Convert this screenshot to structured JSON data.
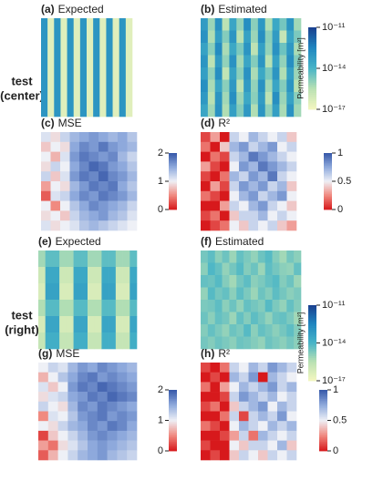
{
  "row_labels": [
    [
      "test",
      "(center)"
    ],
    [
      "test",
      "(right)"
    ]
  ],
  "chart_data": [
    {
      "type": "heatmap",
      "label": "(a)",
      "title": "Expected",
      "cmap": "YlGnBu",
      "zlim": [
        -17,
        -11
      ],
      "z": [
        [
          -13,
          -16.5,
          -13,
          -16.5,
          -13,
          -16.5,
          -13,
          -16.5,
          -13,
          -16.5,
          -13,
          -16.5,
          -13,
          -16.5
        ]
      ]
    },
    {
      "type": "heatmap",
      "label": "(b)",
      "title": "Estimated",
      "cmap": "YlGnBu",
      "zlim": [
        -17,
        -11
      ],
      "colorbar_label": "Permeability [m²]",
      "zticks": [
        {
          "value": -11,
          "label": "10⁻¹¹"
        },
        {
          "value": -14,
          "label": "10⁻¹⁴"
        },
        {
          "value": -17,
          "label": "10⁻¹⁷"
        }
      ],
      "z": [
        [
          -13.2,
          -15.1,
          -12.9,
          -15.6,
          -13.5,
          -15.0,
          -12.8,
          -14.9,
          -13.1,
          -15.4,
          -13.6,
          -14.6,
          -13.0,
          -15.2
        ],
        [
          -12.9,
          -15.4,
          -13.3,
          -14.8,
          -13.0,
          -15.5,
          -13.4,
          -15.1,
          -12.8,
          -14.9,
          -13.2,
          -15.8,
          -13.5,
          -14.7
        ],
        [
          -13.4,
          -14.9,
          -12.7,
          -15.3,
          -13.6,
          -14.7,
          -13.0,
          -15.6,
          -13.3,
          -15.0,
          -12.9,
          -14.5,
          -13.1,
          -15.3
        ],
        [
          -13.0,
          -15.6,
          -13.2,
          -15.0,
          -12.9,
          -15.2,
          -13.5,
          -14.8,
          -13.0,
          -15.5,
          -13.4,
          -15.0,
          -12.8,
          -14.8
        ],
        [
          -13.3,
          -15.0,
          -12.8,
          -15.7,
          -13.4,
          -14.9,
          -12.9,
          -15.3,
          -13.6,
          -14.7,
          -13.0,
          -15.4,
          -13.3,
          -15.1
        ],
        [
          -12.8,
          -15.3,
          -13.5,
          -14.9,
          -13.1,
          -15.6,
          -13.2,
          -15.0,
          -12.9,
          -15.2,
          -13.5,
          -14.8,
          -13.0,
          -15.5
        ],
        [
          -13.1,
          -15.5,
          -13.0,
          -15.2,
          -12.8,
          -15.1,
          -13.6,
          -14.9,
          -13.2,
          -15.6,
          -12.8,
          -15.1,
          -13.4,
          -14.9
        ],
        [
          -13.5,
          -15.2,
          -12.9,
          -15.4,
          -13.3,
          -14.8,
          -13.1,
          -15.4,
          -13.0,
          -15.0,
          -13.3,
          -15.3,
          -12.9,
          -15.2
        ]
      ]
    },
    {
      "type": "heatmap",
      "label": "(c)",
      "title": "MSE",
      "cmap": "RdBu",
      "zlim": [
        0,
        2
      ],
      "zticks": [
        0,
        1,
        2
      ],
      "z": [
        [
          1.1,
          0.9,
          1.2,
          1.4,
          1.5,
          1.6,
          1.5,
          1.4,
          1.5,
          1.3
        ],
        [
          0.8,
          1.0,
          0.9,
          1.5,
          1.7,
          1.6,
          1.8,
          1.6,
          1.5,
          1.4
        ],
        [
          1.0,
          0.7,
          1.1,
          1.6,
          1.8,
          1.7,
          1.6,
          1.7,
          1.4,
          1.2
        ],
        [
          0.9,
          1.2,
          1.0,
          1.5,
          1.7,
          1.9,
          1.8,
          1.6,
          1.5,
          1.3
        ],
        [
          1.2,
          0.8,
          1.1,
          1.6,
          1.8,
          1.7,
          1.9,
          1.7,
          1.6,
          1.4
        ],
        [
          0.6,
          1.0,
          0.9,
          1.4,
          1.6,
          1.8,
          1.7,
          1.8,
          1.5,
          1.3
        ],
        [
          0.3,
          1.1,
          1.2,
          1.5,
          1.7,
          1.6,
          1.8,
          1.7,
          1.6,
          1.4
        ],
        [
          1.0,
          0.5,
          1.0,
          1.3,
          1.5,
          1.7,
          1.6,
          1.5,
          1.4,
          1.2
        ],
        [
          0.9,
          1.0,
          0.8,
          1.2,
          1.4,
          1.5,
          1.6,
          1.4,
          1.3,
          1.1
        ],
        [
          1.1,
          0.9,
          1.0,
          1.1,
          1.3,
          1.4,
          1.3,
          1.2,
          1.1,
          1.0
        ]
      ]
    },
    {
      "type": "heatmap",
      "label": "(d)",
      "title": "R²",
      "cmap": "RdBu",
      "zlim": [
        0,
        1
      ],
      "zticks": [
        0,
        0.5,
        1
      ],
      "z": [
        [
          0.1,
          0.3,
          0.0,
          0.6,
          0.5,
          0.7,
          0.6,
          0.5,
          0.6,
          0.4
        ],
        [
          0.2,
          0.0,
          0.4,
          0.7,
          0.8,
          0.6,
          0.7,
          0.8,
          0.5,
          0.6
        ],
        [
          0.0,
          0.2,
          0.1,
          0.6,
          0.7,
          0.9,
          0.8,
          0.7,
          0.6,
          0.5
        ],
        [
          0.3,
          0.1,
          0.0,
          0.5,
          0.8,
          0.7,
          0.9,
          0.8,
          0.7,
          0.6
        ],
        [
          0.1,
          0.0,
          0.2,
          0.7,
          0.6,
          0.8,
          0.7,
          0.9,
          0.6,
          0.5
        ],
        [
          0.0,
          0.3,
          0.1,
          0.6,
          0.8,
          0.7,
          0.8,
          0.6,
          0.7,
          0.4
        ],
        [
          0.2,
          0.1,
          0.0,
          0.5,
          0.7,
          0.8,
          0.6,
          0.7,
          0.8,
          0.5
        ],
        [
          0.0,
          0.0,
          0.3,
          0.6,
          0.5,
          0.7,
          0.8,
          0.6,
          0.5,
          0.4
        ],
        [
          0.1,
          0.2,
          0.0,
          0.4,
          0.6,
          0.6,
          0.7,
          0.5,
          0.6,
          0.5
        ],
        [
          0.0,
          0.1,
          0.2,
          0.5,
          0.4,
          0.6,
          0.5,
          0.6,
          0.4,
          0.3
        ]
      ]
    },
    {
      "type": "heatmap",
      "label": "(e)",
      "title": "Expected",
      "cmap": "YlGnBu",
      "zlim": [
        -17,
        -11
      ],
      "z": [
        [
          -15.2,
          -14.3,
          -14.3,
          -15.2,
          -15.2,
          -14.3,
          -14.3,
          -15.2,
          -15.2,
          -14.3,
          -14.3,
          -15.2,
          -15.2,
          -14.3
        ],
        [
          -16.0,
          -13.6,
          -13.6,
          -16.0,
          -16.0,
          -13.6,
          -13.6,
          -16.0,
          -16.0,
          -13.6,
          -13.6,
          -16.0,
          -16.0,
          -13.6
        ],
        [
          -16.3,
          -13.4,
          -13.4,
          -16.3,
          -16.3,
          -13.4,
          -13.4,
          -16.3,
          -16.3,
          -13.4,
          -13.4,
          -16.3,
          -16.3,
          -13.4
        ],
        [
          -15.4,
          -14.2,
          -14.2,
          -15.4,
          -15.4,
          -14.2,
          -14.2,
          -15.4,
          -15.4,
          -14.2,
          -14.2,
          -15.4,
          -15.4,
          -14.2
        ],
        [
          -16.2,
          -13.5,
          -13.5,
          -16.2,
          -16.2,
          -13.5,
          -13.5,
          -16.2,
          -16.2,
          -13.5,
          -13.5,
          -16.2,
          -16.2,
          -13.5
        ],
        [
          -15.8,
          -13.8,
          -13.8,
          -15.8,
          -15.8,
          -13.8,
          -13.8,
          -15.8,
          -15.8,
          -13.8,
          -13.8,
          -15.8,
          -15.8,
          -13.8
        ]
      ]
    },
    {
      "type": "heatmap",
      "label": "(f)",
      "title": "Estimated",
      "cmap": "YlGnBu",
      "zlim": [
        -17,
        -11
      ],
      "colorbar_label": "Permeability [m²]",
      "zticks": [
        {
          "value": -11,
          "label": "10⁻¹¹"
        },
        {
          "value": -14,
          "label": "10⁻¹⁴"
        },
        {
          "value": -17,
          "label": "10⁻¹⁷"
        }
      ],
      "z": [
        [
          -14.6,
          -14.3,
          -14.9,
          -14.5,
          -15.1,
          -14.4,
          -14.7,
          -15.0,
          -14.5,
          -14.2,
          -14.8,
          -15.2,
          -14.6,
          -14.9
        ],
        [
          -14.9,
          -14.1,
          -14.4,
          -15.0,
          -14.6,
          -14.2,
          -14.8,
          -14.5,
          -15.1,
          -14.3,
          -14.6,
          -14.9,
          -15.0,
          -14.4
        ],
        [
          -14.4,
          -14.5,
          -14.2,
          -14.8,
          -15.2,
          -14.6,
          -14.3,
          -14.9,
          -14.7,
          -14.4,
          -14.2,
          -14.8,
          -14.5,
          -15.1
        ],
        [
          -15.0,
          -14.2,
          -14.6,
          -14.4,
          -14.9,
          -14.3,
          -14.7,
          -15.1,
          -14.5,
          -14.8,
          -14.3,
          -14.6,
          -14.9,
          -14.7
        ],
        [
          -14.7,
          -14.6,
          -14.3,
          -14.9,
          -14.5,
          -15.0,
          -14.4,
          -14.6,
          -14.8,
          -14.2,
          -14.7,
          -15.0,
          -14.4,
          -14.8
        ],
        [
          -14.5,
          -14.9,
          -14.4,
          -14.6,
          -15.1,
          -14.4,
          -14.8,
          -14.3,
          -14.6,
          -15.0,
          -14.5,
          -14.4,
          -14.7,
          -15.2
        ],
        [
          -14.8,
          -14.4,
          -14.7,
          -15.0,
          -14.5,
          -14.7,
          -14.2,
          -14.9,
          -14.4,
          -14.6,
          -14.9,
          -14.6,
          -14.3,
          -14.8
        ],
        [
          -14.6,
          -14.8,
          -14.5,
          -14.7,
          -14.9,
          -14.5,
          -14.6,
          -14.8,
          -15.0,
          -14.5,
          -14.7,
          -14.9,
          -14.6,
          -14.9
        ]
      ]
    },
    {
      "type": "heatmap",
      "label": "(g)",
      "title": "MSE",
      "cmap": "RdBu",
      "zlim": [
        0,
        2
      ],
      "zticks": [
        0,
        1,
        2
      ],
      "z": [
        [
          1.0,
          1.2,
          1.1,
          1.4,
          1.6,
          1.5,
          1.7,
          1.6,
          1.5,
          1.4
        ],
        [
          0.7,
          1.0,
          1.3,
          1.5,
          1.7,
          1.8,
          1.6,
          1.7,
          1.6,
          1.5
        ],
        [
          1.1,
          0.8,
          1.0,
          1.6,
          1.8,
          1.7,
          1.9,
          1.8,
          1.7,
          1.6
        ],
        [
          0.9,
          1.1,
          1.2,
          1.5,
          1.6,
          1.8,
          1.7,
          1.9,
          1.8,
          1.7
        ],
        [
          1.2,
          1.0,
          0.9,
          1.4,
          1.7,
          1.6,
          1.8,
          1.7,
          1.6,
          1.5
        ],
        [
          0.5,
          1.1,
          1.0,
          1.3,
          1.6,
          1.7,
          1.8,
          1.6,
          1.7,
          1.6
        ],
        [
          1.0,
          0.9,
          1.2,
          1.4,
          1.5,
          1.7,
          1.6,
          1.8,
          1.7,
          1.5
        ],
        [
          0.2,
          0.8,
          1.0,
          1.2,
          1.4,
          1.6,
          1.7,
          1.6,
          1.5,
          1.4
        ],
        [
          0.6,
          0.4,
          0.9,
          1.1,
          1.3,
          1.5,
          1.6,
          1.5,
          1.4,
          1.3
        ],
        [
          0.3,
          0.7,
          1.0,
          1.2,
          1.4,
          1.5,
          1.6,
          1.4,
          1.3,
          1.2
        ]
      ]
    },
    {
      "type": "heatmap",
      "label": "(h)",
      "title": "R²",
      "cmap": "RdBu",
      "zlim": [
        0,
        1
      ],
      "zticks": [
        0,
        0.5,
        1
      ],
      "z": [
        [
          0.1,
          0.0,
          0.2,
          0.6,
          0.5,
          0.7,
          0.6,
          0.8,
          0.7,
          0.6
        ],
        [
          0.0,
          0.1,
          0.0,
          0.7,
          0.6,
          0.8,
          0.0,
          0.7,
          0.6,
          0.5
        ],
        [
          0.2,
          0.0,
          0.3,
          0.5,
          0.7,
          0.6,
          0.7,
          0.8,
          0.6,
          0.7
        ],
        [
          0.0,
          0.0,
          0.1,
          0.6,
          0.8,
          0.7,
          0.6,
          0.7,
          0.5,
          0.6
        ],
        [
          0.1,
          0.2,
          0.0,
          0.4,
          0.6,
          0.7,
          0.8,
          0.5,
          0.7,
          0.6
        ],
        [
          0.0,
          0.0,
          0.2,
          0.6,
          0.1,
          0.6,
          0.7,
          0.6,
          0.8,
          0.5
        ],
        [
          0.2,
          0.1,
          0.0,
          0.5,
          0.7,
          0.6,
          0.5,
          0.7,
          0.6,
          0.7
        ],
        [
          0.0,
          0.0,
          0.1,
          0.3,
          0.6,
          0.2,
          0.7,
          0.6,
          0.5,
          0.6
        ],
        [
          0.1,
          0.0,
          0.0,
          0.5,
          0.4,
          0.6,
          0.6,
          0.5,
          0.7,
          0.4
        ],
        [
          0.0,
          0.1,
          0.0,
          0.4,
          0.6,
          0.5,
          0.4,
          0.6,
          0.5,
          0.6
        ]
      ]
    }
  ]
}
